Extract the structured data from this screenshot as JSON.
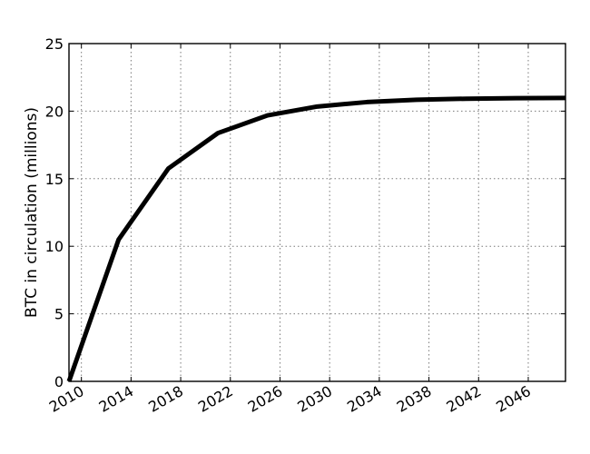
{
  "chart_data": {
    "type": "line",
    "title": "",
    "xlabel": "",
    "ylabel": "BTC in circulation (millions)",
    "xlim": [
      2009,
      2049
    ],
    "ylim": [
      0,
      25
    ],
    "grid": true,
    "x_ticks": [
      2010,
      2014,
      2018,
      2022,
      2026,
      2030,
      2034,
      2038,
      2042,
      2046
    ],
    "x_tick_labels": [
      "2010",
      "2014",
      "2018",
      "2022",
      "2026",
      "2030",
      "2034",
      "2038",
      "2042",
      "2046"
    ],
    "y_ticks": [
      0,
      5,
      10,
      15,
      20,
      25
    ],
    "y_tick_labels": [
      "0",
      "5",
      "10",
      "15",
      "20",
      "25"
    ],
    "series": [
      {
        "color": "#000000",
        "x": [
          2009,
          2013,
          2017,
          2021,
          2025,
          2029,
          2033,
          2037,
          2041,
          2045,
          2049
        ],
        "y": [
          0,
          10.5,
          15.75,
          18.375,
          19.6875,
          20.34,
          20.67,
          20.84,
          20.92,
          20.96,
          20.98
        ]
      }
    ]
  }
}
